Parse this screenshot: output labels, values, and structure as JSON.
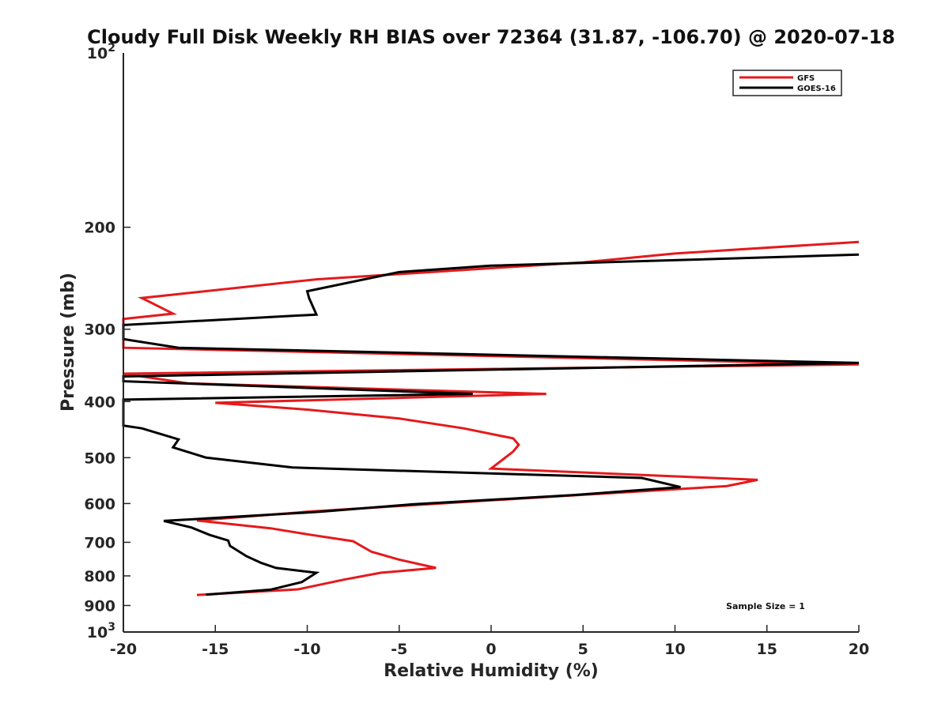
{
  "chart_data": {
    "type": "line",
    "title": "Cloudy Full Disk Weekly RH BIAS over 72364 (31.87, -106.70) @ 2020-07-18",
    "xlabel": "Relative Humidity (%)",
    "ylabel": "Pressure (mb)",
    "xlim": [
      -20,
      20
    ],
    "ylim": [
      100,
      1000
    ],
    "yscale": "log",
    "y_reversed": true,
    "grid": false,
    "legend_position": "top-right",
    "x_ticks": [
      "-20",
      "-15",
      "-10",
      "-5",
      "0",
      "5",
      "10",
      "15",
      "20"
    ],
    "x_tick_values": [
      -20,
      -15,
      -10,
      -5,
      0,
      5,
      10,
      15,
      20
    ],
    "y_ticks": [
      {
        "value": 200,
        "label": "200"
      },
      {
        "value": 300,
        "label": "300"
      },
      {
        "value": 400,
        "label": "400"
      },
      {
        "value": 500,
        "label": "500"
      },
      {
        "value": 600,
        "label": "600"
      },
      {
        "value": 700,
        "label": "700"
      },
      {
        "value": 800,
        "label": "800"
      },
      {
        "value": 900,
        "label": "900"
      }
    ],
    "y_ticks_pow": [
      {
        "value": 100,
        "base": "10",
        "exp": "2"
      },
      {
        "value": 1000,
        "base": "10",
        "exp": "3"
      }
    ],
    "annotation": "Sample Size = 1",
    "series": [
      {
        "name": "GFS",
        "color": "#e41a1c",
        "points": [
          [
            20,
            212
          ],
          [
            10,
            222
          ],
          [
            5,
            230
          ],
          [
            -9.5,
            246
          ],
          [
            -19,
            265
          ],
          [
            -17.3,
            282
          ],
          [
            -20,
            288
          ],
          [
            -20,
            323
          ],
          [
            20,
            345
          ],
          [
            -20,
            358
          ],
          [
            -16.5,
            372
          ],
          [
            3,
            388
          ],
          [
            -15,
            402
          ],
          [
            -10,
            413
          ],
          [
            -5,
            428
          ],
          [
            -1.5,
            445
          ],
          [
            1.2,
            463
          ],
          [
            1.5,
            475
          ],
          [
            1.2,
            488
          ],
          [
            0,
            522
          ],
          [
            14.5,
            546
          ],
          [
            12.8,
            560
          ],
          [
            -1,
            595
          ],
          [
            -10,
            620
          ],
          [
            -16,
            642
          ],
          [
            -12,
            662
          ],
          [
            -10,
            678
          ],
          [
            -7.5,
            697
          ],
          [
            -7.2,
            706
          ],
          [
            -6.5,
            727
          ],
          [
            -5,
            750
          ],
          [
            -3,
            775
          ],
          [
            -6,
            790
          ],
          [
            -8,
            812
          ],
          [
            -10.5,
            844
          ],
          [
            -16,
            863
          ]
        ]
      },
      {
        "name": "GOES-16",
        "color": "#000000",
        "points": [
          [
            20,
            223
          ],
          [
            0,
            233
          ],
          [
            -5,
            239
          ],
          [
            -10,
            258
          ],
          [
            -9.9,
            265
          ],
          [
            -9.5,
            283
          ],
          [
            -20,
            295
          ],
          [
            -20,
            312
          ],
          [
            -17,
            323
          ],
          [
            20,
            343
          ],
          [
            -20,
            362
          ],
          [
            -20,
            369
          ],
          [
            -1,
            388
          ],
          [
            -20,
            397
          ],
          [
            -20,
            440
          ],
          [
            -19,
            445
          ],
          [
            -17,
            465
          ],
          [
            -17.3,
            480
          ],
          [
            -15.5,
            500
          ],
          [
            -10.8,
            520
          ],
          [
            8.2,
            542
          ],
          [
            10.3,
            562
          ],
          [
            4.5,
            580
          ],
          [
            -4.3,
            602
          ],
          [
            -9.3,
            620
          ],
          [
            -17.8,
            643
          ],
          [
            -16.3,
            660
          ],
          [
            -15.3,
            680
          ],
          [
            -14.3,
            695
          ],
          [
            -14.2,
            710
          ],
          [
            -13.3,
            740
          ],
          [
            -12.5,
            760
          ],
          [
            -11.7,
            775
          ],
          [
            -9.5,
            790
          ],
          [
            -10.3,
            820
          ],
          [
            -12,
            845
          ],
          [
            -15.5,
            862
          ]
        ]
      }
    ]
  }
}
